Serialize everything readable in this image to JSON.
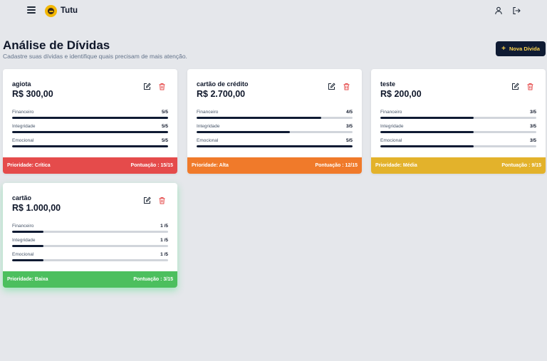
{
  "header": {
    "brand": "Tutu",
    "icons": [
      "menu-icon",
      "logo-avatar",
      "user-icon",
      "logout-icon"
    ]
  },
  "page": {
    "title": "Análise de Dívidas",
    "subtitle": "Cadastre suas dívidas e identifique quais precisam de mais atenção.",
    "new_button": "Nova Dívida"
  },
  "debts": [
    {
      "name": "agiota",
      "value": "R$ 300,00",
      "metrics": [
        {
          "label": "Financeiro",
          "score": "5/5",
          "level": 1.0
        },
        {
          "label": "Integridade",
          "score": "5/5",
          "level": 1.0
        },
        {
          "label": "Emocional",
          "score": "5/5",
          "level": 1.0
        }
      ],
      "priority": "Prioridade: Crítica",
      "points": "Pontuação : 15/15",
      "color": "#e54b4b"
    },
    {
      "name": "cartão de crédito",
      "value": "R$ 2.700,00",
      "metrics": [
        {
          "label": "Financeiro",
          "score": "4/5",
          "level": 0.8
        },
        {
          "label": "Integridade",
          "score": "3/5",
          "level": 0.6
        },
        {
          "label": "Emocional",
          "score": "5/5",
          "level": 1.0
        }
      ],
      "priority": "Prioridade: Alta",
      "points": "Pontuação : 12/15",
      "color": "#f07a2a"
    },
    {
      "name": "teste",
      "value": "R$ 200,00",
      "metrics": [
        {
          "label": "Financeiro",
          "score": "3/5",
          "level": 0.6
        },
        {
          "label": "Integridade",
          "score": "3/5",
          "level": 0.6
        },
        {
          "label": "Emocional",
          "score": "3/5",
          "level": 0.6
        }
      ],
      "priority": "Prioridade: Média",
      "points": "Pontuação : 9/15",
      "color": "#e3b22b"
    },
    {
      "name": "cartão",
      "value": "R$ 1.000,00",
      "metrics": [
        {
          "label": "Financeiro",
          "score": "1 /5",
          "level": 0.2
        },
        {
          "label": "Integridade",
          "score": "1 /5",
          "level": 0.2
        },
        {
          "label": "Emocional",
          "score": "1 /5",
          "level": 0.2
        }
      ],
      "priority": "Prioridade: Baixa",
      "points": "Pontuação : 3/15",
      "color": "#4cbf5e"
    }
  ]
}
